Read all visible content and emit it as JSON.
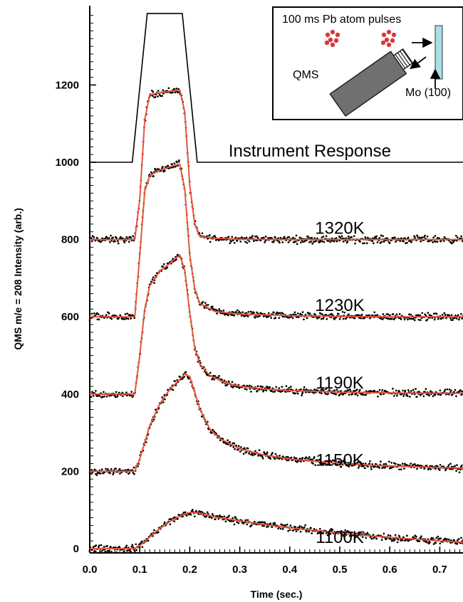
{
  "chart_data": {
    "type": "line",
    "xlabel": "Time (sec.)",
    "ylabel": "QMS m/e = 208 Intensity (arb.)",
    "xlim": [
      0.0,
      0.75
    ],
    "ylim": [
      -15,
      1390
    ],
    "x_ticks": [
      "0.0",
      "0.1",
      "0.2",
      "0.3",
      "0.4",
      "0.5",
      "0.6",
      "0.7"
    ],
    "y_ticks": [
      "0",
      "200",
      "400",
      "600",
      "800",
      "1000",
      "1200"
    ],
    "grid": false,
    "instrument_response": {
      "name": "Instrument Response",
      "x": [
        0.0,
        0.085,
        0.115,
        0.185,
        0.215,
        0.75
      ],
      "y": [
        1000,
        1000,
        1385,
        1385,
        1000,
        1000
      ]
    },
    "series": [
      {
        "name": "1320K",
        "baseline": 800,
        "x": [
          0.0,
          0.09,
          0.1,
          0.11,
          0.12,
          0.15,
          0.18,
          0.19,
          0.2,
          0.21,
          0.22,
          0.25,
          0.3,
          0.4,
          0.5,
          0.6,
          0.75
        ],
        "y": [
          800,
          800,
          905,
          1110,
          1175,
          1182,
          1187,
          1130,
          940,
          840,
          808,
          803,
          801,
          800,
          800,
          800,
          800
        ]
      },
      {
        "name": "1230K",
        "baseline": 600,
        "x": [
          0.0,
          0.09,
          0.1,
          0.11,
          0.12,
          0.14,
          0.17,
          0.18,
          0.19,
          0.2,
          0.21,
          0.22,
          0.25,
          0.3,
          0.4,
          0.5,
          0.6,
          0.75
        ],
        "y": [
          600,
          600,
          760,
          925,
          965,
          980,
          992,
          995,
          930,
          760,
          672,
          635,
          614,
          607,
          603,
          601,
          600,
          600
        ]
      },
      {
        "name": "1190K",
        "baseline": 400,
        "x": [
          0.0,
          0.09,
          0.1,
          0.11,
          0.12,
          0.14,
          0.16,
          0.18,
          0.19,
          0.2,
          0.21,
          0.22,
          0.24,
          0.27,
          0.3,
          0.35,
          0.4,
          0.5,
          0.6,
          0.75
        ],
        "y": [
          400,
          400,
          500,
          620,
          680,
          718,
          738,
          760,
          720,
          610,
          520,
          478,
          448,
          430,
          420,
          413,
          409,
          405,
          403,
          402
        ]
      },
      {
        "name": "1150K",
        "baseline": 200,
        "x": [
          0.0,
          0.09,
          0.1,
          0.12,
          0.14,
          0.16,
          0.18,
          0.19,
          0.2,
          0.21,
          0.22,
          0.24,
          0.26,
          0.3,
          0.35,
          0.4,
          0.5,
          0.6,
          0.75
        ],
        "y": [
          200,
          200,
          232,
          318,
          375,
          412,
          438,
          452,
          445,
          405,
          362,
          310,
          285,
          258,
          242,
          232,
          220,
          214,
          208
        ]
      },
      {
        "name": "1100K",
        "baseline": 0,
        "x": [
          0.0,
          0.09,
          0.1,
          0.12,
          0.14,
          0.16,
          0.18,
          0.2,
          0.22,
          0.25,
          0.3,
          0.35,
          0.4,
          0.5,
          0.6,
          0.7,
          0.75
        ],
        "y": [
          0,
          0,
          8,
          30,
          52,
          70,
          84,
          94,
          92,
          82,
          72,
          62,
          54,
          40,
          29,
          20,
          16
        ]
      }
    ],
    "curve_labels": [
      {
        "text": "Instrument Response",
        "x": 0.44,
        "y": 1000
      },
      {
        "text": "1320K",
        "x": 0.5,
        "y": 800
      },
      {
        "text": "1230K",
        "x": 0.5,
        "y": 600
      },
      {
        "text": "1190K",
        "x": 0.5,
        "y": 400
      },
      {
        "text": "1150K",
        "x": 0.5,
        "y": 200
      },
      {
        "text": "1100K",
        "x": 0.5,
        "y": 0
      }
    ],
    "inset": {
      "pulses_label": "100 ms Pb atom pulses",
      "detector_label": "QMS",
      "surface_label": "Mo (100)",
      "atom_color": "#d6393a",
      "surface_color": "#a9dfe6",
      "detector_color": "#707070"
    },
    "colors": {
      "fit": "#e8553a",
      "points": "#000000",
      "response": "#000000"
    }
  }
}
